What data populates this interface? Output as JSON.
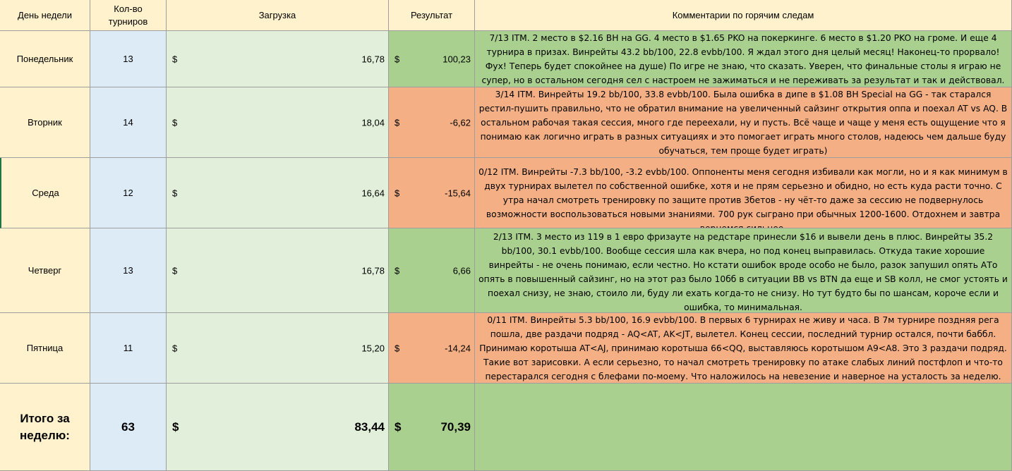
{
  "headers": {
    "day": "День недели",
    "count": "Кол-во турниров",
    "load": "Загрузка",
    "result": "Результат",
    "comments": "Комментарии по горячим следам"
  },
  "currency": "$",
  "rows": [
    {
      "day": "Понедельник",
      "count": "13",
      "load": "16,78",
      "result": "100,23",
      "result_sign": "positive",
      "comment": "7/13 ITM. 2 место в $2.16 BH на GG. 4 место в $1.65 PKO на покеркинге. 6 место в $1.20 PKO на громе. И еще 4 турнира в призах. Винрейты 43.2 bb/100, 22.8 evbb/100. Я ждал этого дня целый месяц! Наконец-то прорвало! Фух! Теперь будет спокойнее на душе) По игре не знаю, что сказать. Уверен, что финальные столы я играю не супер, но в остальном сегодня сел с настроем не зажиматься и не переживать за результат и так и действовал."
    },
    {
      "day": "Вторник",
      "count": "14",
      "load": "18,04",
      "result": "-6,62",
      "result_sign": "negative",
      "comment": "3/14 ITM. Винрейты 19.2 bb/100, 33.8 evbb/100. Была ошибка в дипе в $1.08 BH Special на GG - так старался рестил-пушить правильно, что не обратил внимание на увеличенный сайзинг открытия оппа и поехал AT vs AQ. В остальном рабочая такая сессия, много где переехали, ну и пусть.  Всё чаще и чаще у меня есть ощущение что я понимаю как логично играть в разных ситуациях и это помогает играть много столов, надеюсь чем дальше буду обучаться, тем проще будет играть)"
    },
    {
      "day": "Среда",
      "count": "12",
      "load": "16,64",
      "result": "-15,64",
      "result_sign": "negative",
      "comment": "0/12 ITM. Винрейты -7.3 bb/100, -3.2 evbb/100. Оппоненты меня сегодня избивали как могли, но и я как минимум в двух турнирах вылетел по собственной ошибке, хотя и не прям серьезно и обидно, но есть куда расти точно. С утра начал смотреть тренировку по защите против 3бетов - ну чёт-то даже за сессию не подвернулось возможности воспользоваться новыми знаниями. 700 рук сыграно при обычных 1200-1600. Отдохнем и завтра вернемся сильнее."
    },
    {
      "day": "Четверг",
      "count": "13",
      "load": "16,78",
      "result": "6,66",
      "result_sign": "positive",
      "comment": "2/13 ITM. 3 место из 119 в 1 евро фризауте на редстаре принесли $16 и вывели день в плюс. Винрейты 35.2 bb/100, 30.1 evbb/100. Вообще сессия шла как вчера, но под конец выправилась. Откуда такие хорошие винрейты - не очень понимаю, если честно. Но кстати ошибок вроде особо не было, разок запушил опять АТо опять в повышенный сайзинг, но на этот раз было 10бб в ситуации BB vs BTN да еще и SB колл, не смог устоять и поехал снизу, не знаю, стоило ли, буду ли ехать когда-то не снизу. Но тут будто бы по шансам, короче если и ошибка, то минимальная."
    },
    {
      "day": "Пятница",
      "count": "11",
      "load": "15,20",
      "result": "-14,24",
      "result_sign": "negative",
      "comment": "0/11 ITM. Винрейты 5.3 bb/100, 16.9 evbb/100. В первых 6 турнирах не живу и часа. В 7м турнире поздняя рега пошла, две раздачи подряд - AQ<AT, AK<JT, вылетел. Конец сессии, последний турнир остался, почти баббл.  Принимаю коротыша AT<AJ, принимаю коротыша 66<QQ, выставляюсь коротышом A9<A8. Это 3 раздачи подряд. Такие вот зарисовки. А если серьезно, то начал смотреть тренировку по атаке слабых линий постфлоп и что-то перестарался сегодня с блефами по-моему. Что наложилось на невезение и наверное на усталость за неделю."
    }
  ],
  "totals": {
    "label": "Итого за неделю:",
    "count": "63",
    "load": "83,44",
    "result": "70,39"
  },
  "colors": {
    "header_bg": "#fff2cc",
    "count_bg": "#ddebf7",
    "load_bg": "#e2efda",
    "positive_bg": "#a9d08e",
    "negative_bg": "#f4b084"
  }
}
